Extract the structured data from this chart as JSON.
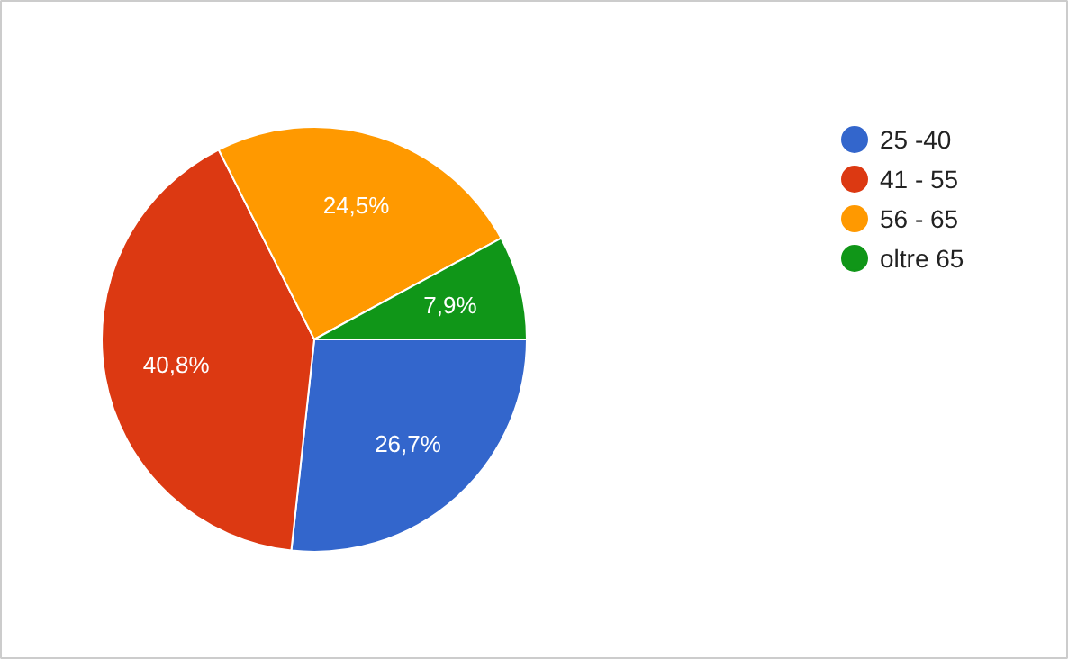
{
  "chart_data": {
    "type": "pie",
    "categories": [
      "25 -40",
      "41 - 55",
      "56 - 65",
      "oltre 65"
    ],
    "values": [
      26.7,
      40.8,
      24.5,
      7.9
    ],
    "colors": [
      "#3366cc",
      "#dc3912",
      "#ff9900",
      "#109618"
    ],
    "value_labels": [
      "26,7%",
      "40,8%",
      "24,5%",
      "7,9%"
    ],
    "legend": "right"
  }
}
